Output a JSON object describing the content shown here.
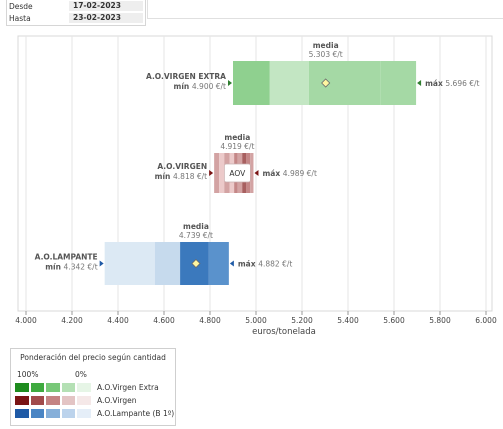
{
  "filters": {
    "desde_label": "Desde",
    "desde_value": "17-02-2023",
    "hasta_label": "Hasta",
    "hasta_value": "23-02-2023"
  },
  "chart_data": {
    "type": "boxplot",
    "xlabel": "euros/tonelada",
    "xlim": [
      4000,
      6000
    ],
    "ticks": [
      4000,
      4200,
      4400,
      4600,
      4800,
      5000,
      5200,
      5400,
      5600,
      5800,
      6000
    ],
    "tick_labels": [
      "4.000",
      "4.200",
      "4.400",
      "4.600",
      "4.800",
      "5.000",
      "5.200",
      "5.400",
      "5.600",
      "5.800",
      "6.000"
    ],
    "series": [
      {
        "name": "A.O.VIRGEN EXTRA",
        "min": 4900,
        "max": 5696,
        "mean": 5303,
        "min_label": "4.900 €/t",
        "max_label": "5.696 €/t",
        "mean_label": "5.303 €/t",
        "segments": [
          4900,
          5060,
          5230,
          5540,
          5696
        ],
        "colors": [
          "#8fd08f",
          "#c3e6c3",
          "#a5d9a5",
          "#a5d9a5"
        ]
      },
      {
        "name": "A.O.VIRGEN",
        "min": 4818,
        "max": 4989,
        "mean": 4919,
        "badge": "AOV",
        "min_label": "4.818 €/t",
        "max_label": "4.989 €/t",
        "mean_label": "4.919 €/t",
        "segments": [
          4818,
          4840,
          4862,
          4885,
          4905,
          4920,
          4940,
          4958,
          4975,
          4989
        ],
        "colors": [
          "#d3a3a3",
          "#eccaca",
          "#d3a3a3",
          "#eccaca",
          "#c48787",
          "#d3a3a3",
          "#a86060",
          "#c48787",
          "#d3a3a3"
        ]
      },
      {
        "name": "A.O.LAMPANTE",
        "min": 4342,
        "max": 4882,
        "mean": 4739,
        "min_label": "4.342 €/t",
        "max_label": "4.882 €/t",
        "mean_label": "4.739 €/t",
        "segments": [
          4342,
          4560,
          4670,
          4795,
          4882
        ],
        "colors": [
          "#dce9f4",
          "#c6daed",
          "#3b79bd",
          "#5a92cc"
        ]
      }
    ],
    "labels": {
      "mean": "media",
      "min": "mín",
      "max": "máx"
    }
  },
  "legend": {
    "title": "Ponderación del precio según cantidad",
    "pct_high": "100%",
    "pct_low": "0%",
    "rows": [
      {
        "name": "A.O.Virgen Extra",
        "colors": [
          "#1e8c1e",
          "#3faa3f",
          "#78c878",
          "#b4e0b4",
          "#e6f5e6"
        ]
      },
      {
        "name": "A.O.Virgen",
        "colors": [
          "#7a1414",
          "#a14b4b",
          "#c48383",
          "#e3c4c4",
          "#f5e8e8"
        ]
      },
      {
        "name": "A.O.Lampante (B 1º)",
        "colors": [
          "#1f5aa6",
          "#4a85c4",
          "#86afd9",
          "#bcd3ec",
          "#e5eef8"
        ]
      }
    ]
  }
}
